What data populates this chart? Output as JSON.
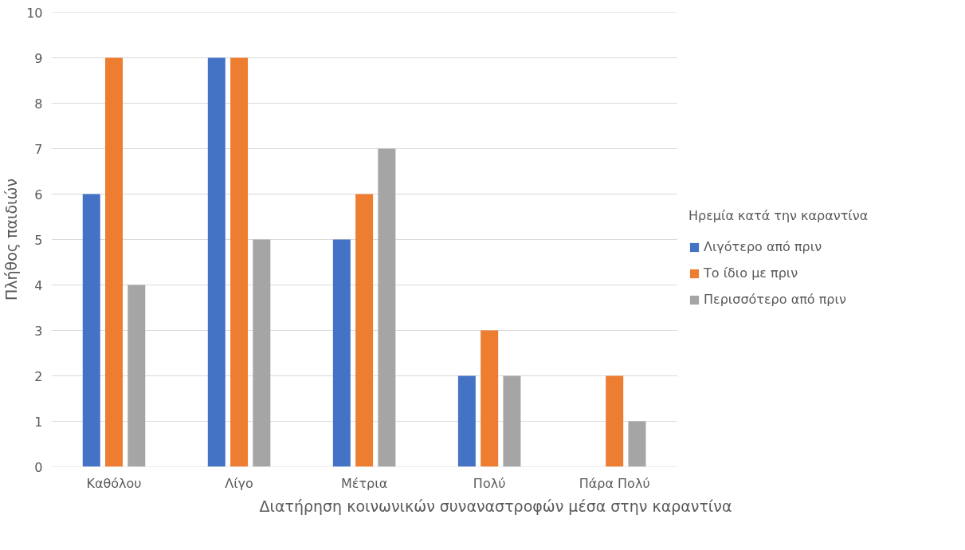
{
  "chart_data": {
    "type": "bar",
    "xlabel": "Διατήρηση κοινωνικών συναναστροφών μέσα στην καραντίνα",
    "ylabel": "Πλήθος παιδιών",
    "legend_title": "Ηρεμία κατά την καραντίνα",
    "categories": [
      "Καθόλου",
      "Λίγο",
      "Μέτρια",
      "Πολύ",
      "Πάρα Πολύ"
    ],
    "series": [
      {
        "name": "Λιγότερο από πριν",
        "color": "#4472c4",
        "values": [
          6,
          9,
          5,
          2,
          0
        ]
      },
      {
        "name": "Το ίδιο με πριν",
        "color": "#ed7d31",
        "values": [
          9,
          9,
          6,
          3,
          2
        ]
      },
      {
        "name": "Περισσότερο από πριν",
        "color": "#a5a5a5",
        "values": [
          4,
          5,
          7,
          2,
          1
        ]
      }
    ],
    "ylim": [
      0,
      10
    ],
    "yticks": [
      0,
      1,
      2,
      3,
      4,
      5,
      6,
      7,
      8,
      9,
      10
    ],
    "grid": "y",
    "legend": "right"
  }
}
